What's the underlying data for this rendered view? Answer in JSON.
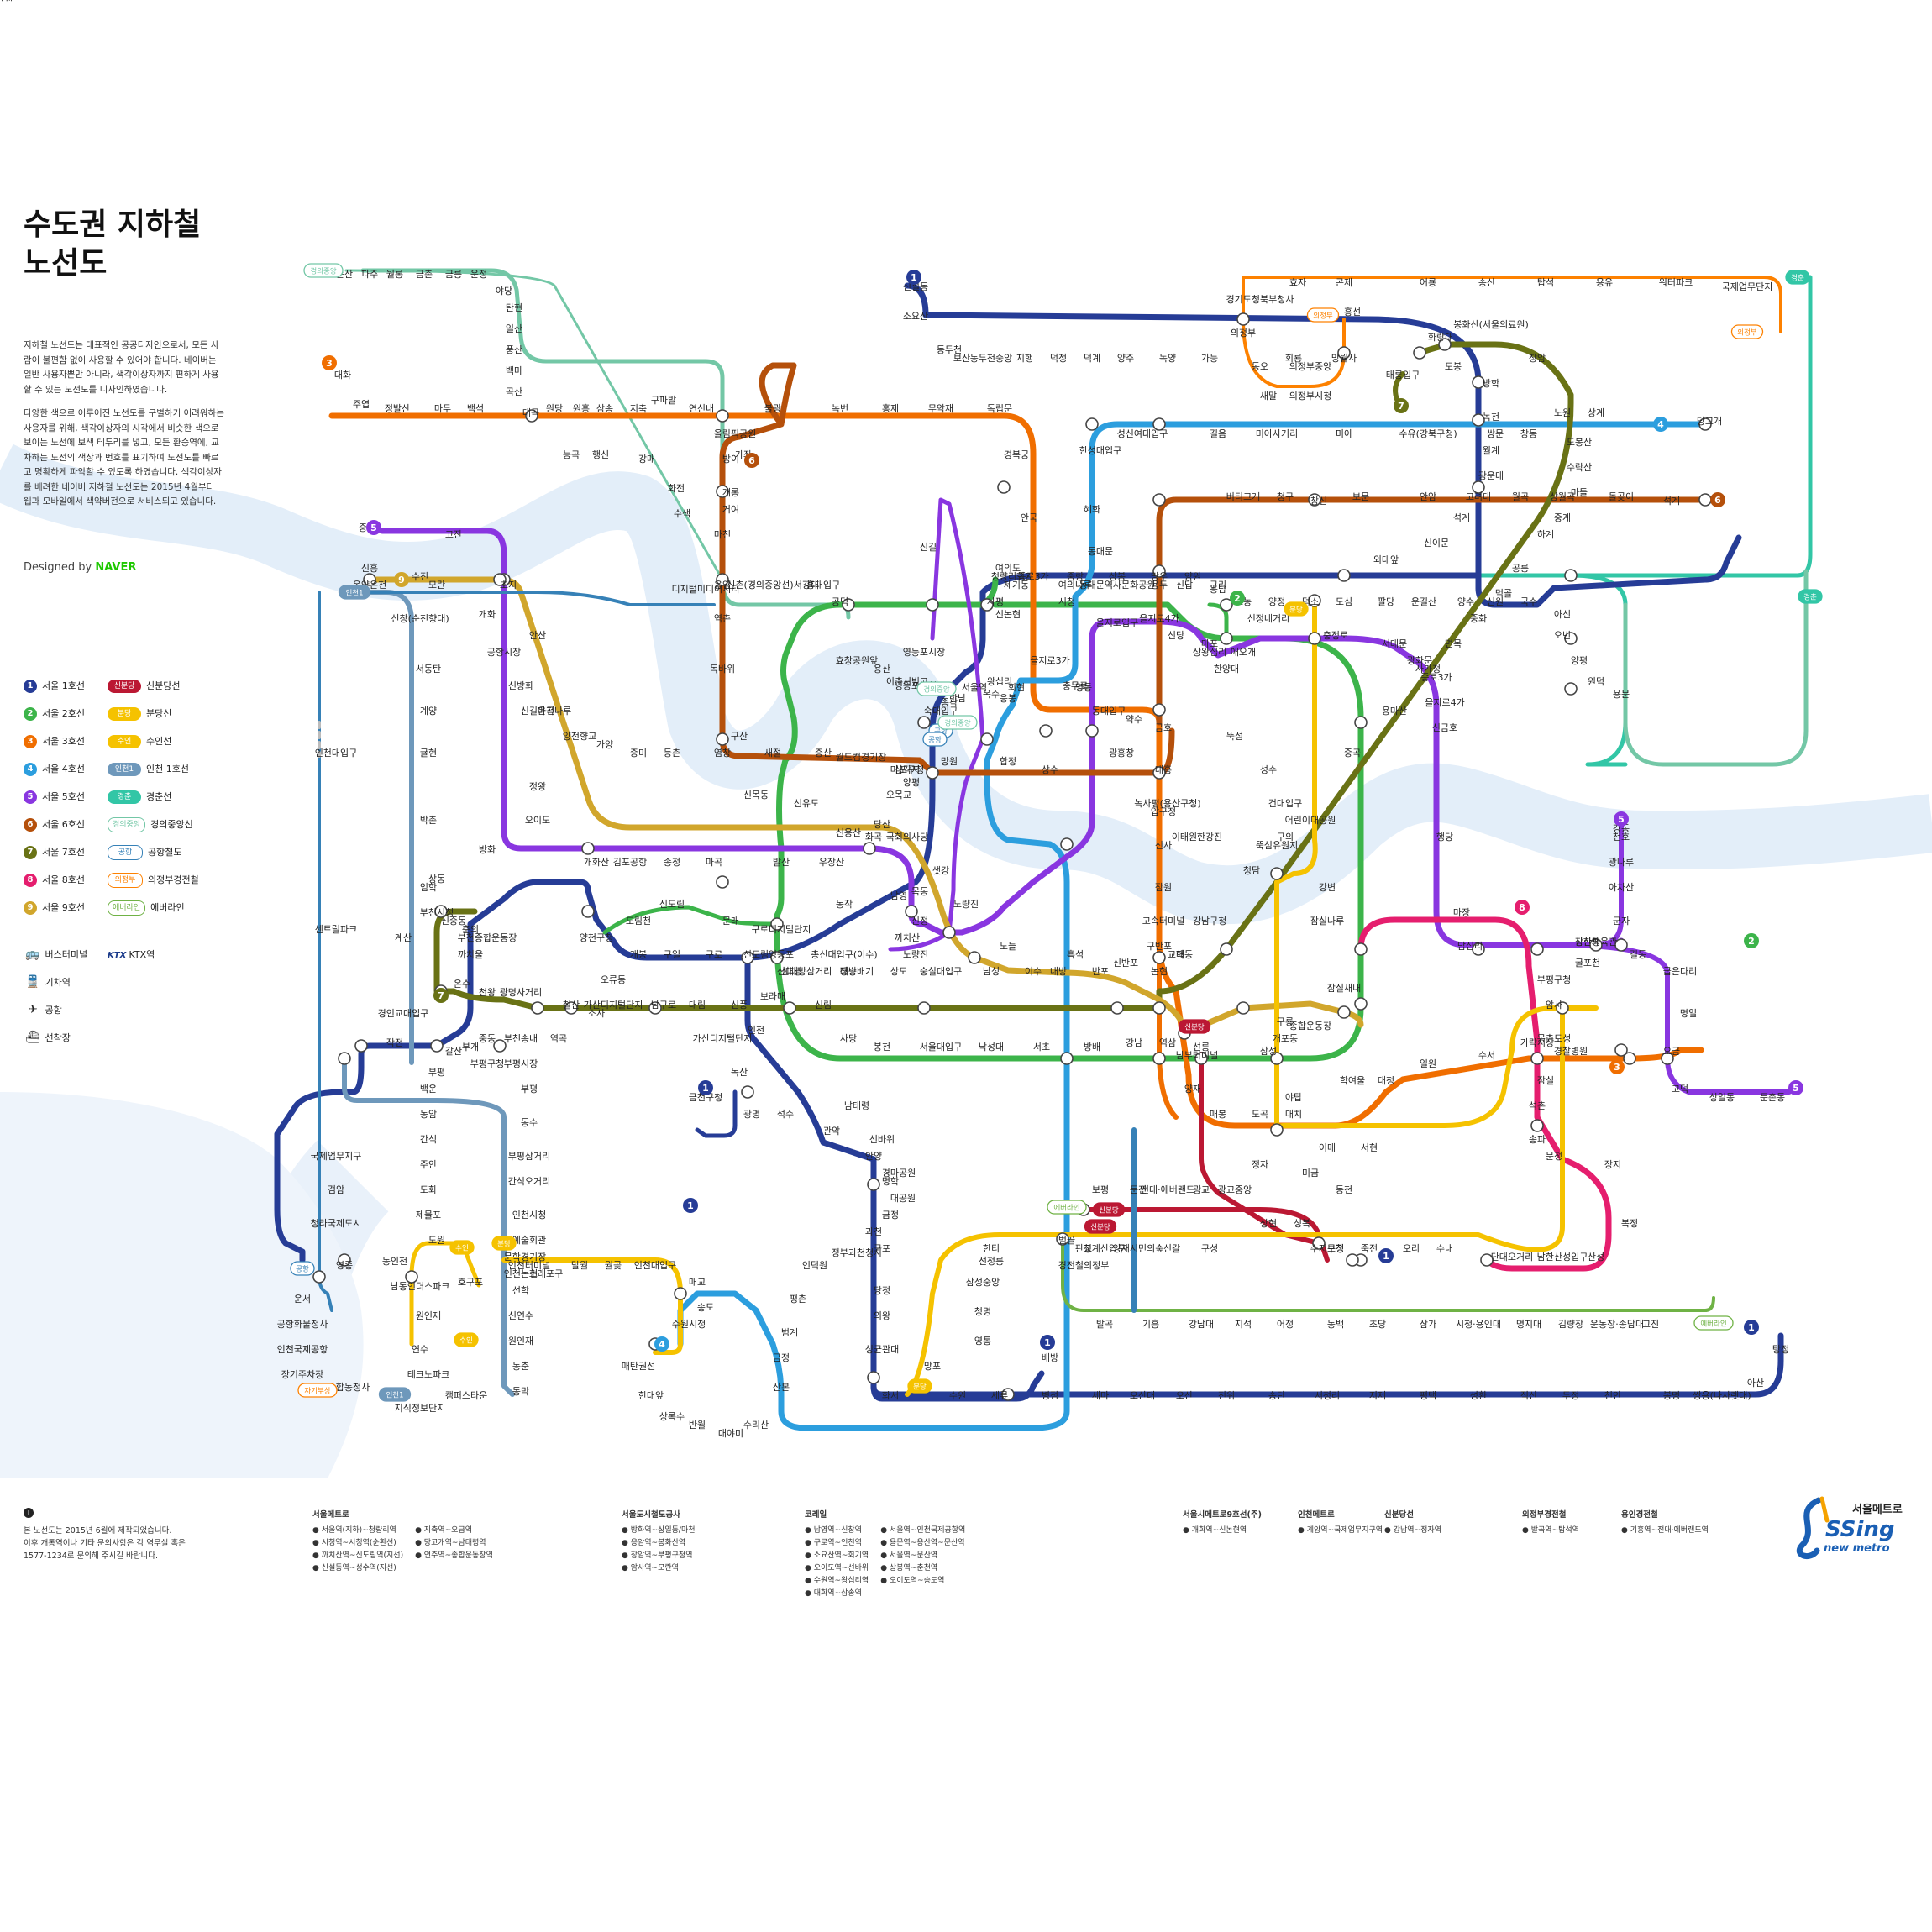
{
  "title": "수도권 지하철\n노선도",
  "intro": [
    "지하철 노선도는 대표적인 공공디자인으로서, 모든 사람이 불편함 없이 사용할 수 있어야 합니다. 네이버는 일반 사용자뿐만 아니라, 색각이상자까지 편하게 사용할 수 있는 노선도를 디자인하였습니다.",
    "다양한 색으로 이루어진 노선도를 구별하기 어려워하는 사용자를 위해, 색각이상자의 시각에서 비슷한 색으로 보이는 노선에 보색 테두리를 넣고, 모든 환승역에, 교차하는 노선의 색상과 번호를 표기하여 노선도를 빠르고 명확하게 파악할 수 있도록 하였습니다. 색각이상자를 배려한 네이버 지하철 노선도는 2015년 4월부터 웹과 모바일에서 색약버전으로 서비스되고 있습니다."
  ],
  "designed_by": "Designed by",
  "designed_brand": "NAVER",
  "legend_lines": [
    {
      "badge": "1",
      "label": "서울 1호선",
      "color": "#263c96"
    },
    {
      "badge": "2",
      "label": "서울 2호선",
      "color": "#3cb44a"
    },
    {
      "badge": "3",
      "label": "서울 3호선",
      "color": "#f06e00"
    },
    {
      "badge": "4",
      "label": "서울 4호선",
      "color": "#2c9ede"
    },
    {
      "badge": "5",
      "label": "서울 5호선",
      "color": "#8936e0"
    },
    {
      "badge": "6",
      "label": "서울 6호선",
      "color": "#b5500b"
    },
    {
      "badge": "7",
      "label": "서울 7호선",
      "color": "#697215"
    },
    {
      "badge": "8",
      "label": "서울 8호선",
      "color": "#e51e6e"
    },
    {
      "badge": "9",
      "label": "서울 9호선",
      "color": "#d1a62c"
    }
  ],
  "legend_other": [
    {
      "badge": "신분당",
      "label": "신분당선",
      "color": "#bb1833"
    },
    {
      "badge": "분당",
      "label": "분당선",
      "color": "#f5c200"
    },
    {
      "badge": "수인",
      "label": "수인선",
      "color": "#f5c200"
    },
    {
      "badge": "인천1",
      "label": "인천 1호선",
      "color": "#6e98bb"
    },
    {
      "badge": "경춘",
      "label": "경춘선",
      "color": "#32c6a6"
    },
    {
      "badge": "경의중앙",
      "label": "경의중앙선",
      "color": "#73c7a6"
    },
    {
      "badge": "공항",
      "label": "공항철도",
      "color": "#3681b7"
    },
    {
      "badge": "의정부",
      "label": "의정부경전철",
      "color": "#fd8100"
    },
    {
      "badge": "에버라인",
      "label": "에버라인",
      "color": "#6fb245"
    }
  ],
  "legend_symbols": [
    {
      "icon": "bus-terminal-icon",
      "glyph": "🚌",
      "label": "버스터미널"
    },
    {
      "icon": "ktx-icon",
      "glyph": "KTX",
      "label": "KTX역"
    },
    {
      "icon": "train-station-icon",
      "glyph": "🚆",
      "label": "기차역"
    },
    {
      "icon": "airport-icon",
      "glyph": "✈",
      "label": "공항"
    },
    {
      "icon": "ferry-icon",
      "glyph": "⛴",
      "label": "선착장"
    }
  ],
  "footer_note": "본 노선도는 2015년 6월에 제작되었습니다.\n이후 개통역이나 기타 문의사항은 각 역무실 혹은\n1577-1234로 문의해 주시길 바랍니다.",
  "footer_sections": [
    {
      "heading": "서울메트로",
      "items": [
        "서울역(지하)~청량리역",
        "시청역~시청역(순환선)",
        "까치산역~신도림역(지선)",
        "신설동역~성수역(지선)",
        "지축역~오금역",
        "당고개역~남태령역",
        "연주역~종합운동장역"
      ]
    },
    {
      "heading": "서울도시철도공사",
      "items": [
        "방화역~상일동/마천",
        "응암역~봉화산역",
        "장암역~부평구청역",
        "암사역~모란역"
      ]
    },
    {
      "heading": "코레일",
      "items": [
        "남영역~신창역",
        "구로역~인천역",
        "소요산역~회기역",
        "오이도역~선바위",
        "수원역~왕십리역",
        "대화역~삼송역",
        "서울역~인천국제공항역",
        "용문역~용산역~문산역",
        "서울역~문산역",
        "상봉역~춘천역",
        "오이도역~송도역"
      ]
    },
    {
      "heading": "서울시메트로9호선(주)",
      "items": [
        "개화역~신논현역"
      ]
    },
    {
      "heading": "인천메트로",
      "items": [
        "계양역~국제업무지구역"
      ]
    },
    {
      "heading": "신분당선",
      "items": [
        "강남역~정자역"
      ]
    },
    {
      "heading": "의정부경전철",
      "items": [
        "발곡역~탑석역"
      ]
    },
    {
      "heading": "용인경전철",
      "items": [
        "기흥역~전대·에버랜드역"
      ]
    }
  ],
  "logo": {
    "org": "서울메트로",
    "brand": "SSing",
    "sub": "new metro"
  },
  "map": {
    "line_colors": {
      "l1": "#263c96",
      "l2": "#3cb44a",
      "l3": "#f06e00",
      "l4": "#2c9ede",
      "l5": "#8936e0",
      "l6": "#b5500b",
      "l7": "#697215",
      "l8": "#e51e6e",
      "l9": "#d1a62c",
      "sbd": "#bb1833",
      "bd": "#f5c200",
      "inc1": "#6e98bb",
      "gc": "#32c6a6",
      "gj": "#73c7a6",
      "arex": "#3681b7",
      "uj": "#fd8100",
      "ever": "#6fb245"
    },
    "line_badges": [
      {
        "num": "1",
        "color": "#263c96"
      },
      {
        "num": "1",
        "color": "#263c96"
      },
      {
        "num": "1",
        "color": "#263c96"
      },
      {
        "num": "1",
        "color": "#263c96"
      },
      {
        "num": "1",
        "color": "#263c96"
      },
      {
        "num": "1",
        "color": "#263c96"
      },
      {
        "num": "2",
        "color": "#3cb44a"
      },
      {
        "num": "2",
        "color": "#3cb44a"
      },
      {
        "num": "3",
        "color": "#f06e00"
      },
      {
        "num": "3",
        "color": "#f06e00"
      },
      {
        "num": "4",
        "color": "#2c9ede"
      },
      {
        "num": "4",
        "color": "#2c9ede"
      },
      {
        "num": "5",
        "color": "#8936e0"
      },
      {
        "num": "5",
        "color": "#8936e0"
      },
      {
        "num": "5",
        "color": "#8936e0"
      },
      {
        "num": "6",
        "color": "#b5500b"
      },
      {
        "num": "6",
        "color": "#b5500b"
      },
      {
        "num": "7",
        "color": "#697215"
      },
      {
        "num": "7",
        "color": "#697215"
      },
      {
        "num": "8",
        "color": "#e51e6e"
      },
      {
        "num": "9",
        "color": "#d1a62c"
      }
    ],
    "line_tags": [
      "경의중앙",
      "경의중앙",
      "경춘",
      "경춘",
      "의정부",
      "의정부",
      "분당",
      "분당",
      "분당",
      "수인",
      "수인",
      "인천1",
      "인천1",
      "공항",
      "공항",
      "자기부상",
      "에버라인",
      "에버라인",
      "신분당",
      "신분당",
      "신분당",
      "경의중앙",
      "공항"
    ],
    "stations": [
      "문산",
      "파주",
      "월롱",
      "금촌",
      "금릉",
      "운정",
      "야당",
      "탄현",
      "일산",
      "풍산",
      "백마",
      "곡산",
      "대곡",
      "능곡",
      "행신",
      "강매",
      "화전",
      "수색",
      "디지털미디어시티",
      "가좌",
      "신촌(경의중앙선)",
      "서강대",
      "홍대입구",
      "공덕",
      "효창공원앞",
      "용산",
      "이촌",
      "서빙고",
      "한남",
      "옥수",
      "응봉",
      "왕십리",
      "청량리",
      "회기",
      "중랑",
      "상봉",
      "망우",
      "양원",
      "구리",
      "도농",
      "양정",
      "덕소",
      "도심",
      "팔당",
      "운길산",
      "양수",
      "신원",
      "국수",
      "아신",
      "오빈",
      "양평",
      "원덕",
      "용문",
      "대화",
      "주엽",
      "정발산",
      "마두",
      "백석",
      "원당",
      "원흥",
      "삼송",
      "지축",
      "구파발",
      "연신내",
      "불광",
      "녹번",
      "홍제",
      "무악재",
      "독립문",
      "경복궁",
      "안국",
      "종로3가",
      "을지로3가",
      "충무로",
      "동대입구",
      "약수",
      "금호",
      "압구정",
      "신사",
      "잠원",
      "고속터미널",
      "교대",
      "남부터미널",
      "양재",
      "매봉",
      "도곡",
      "대치",
      "학여울",
      "대청",
      "일원",
      "수서",
      "가락시장",
      "경찰병원",
      "오금",
      "당고개",
      "상계",
      "노원",
      "창동",
      "쌍문",
      "수유(강북구청)",
      "미아",
      "미아사거리",
      "길음",
      "성신여대입구",
      "한성대입구",
      "혜화",
      "동대문",
      "동대문역사문화공원",
      "명동",
      "회현",
      "서울역",
      "숙대입구",
      "삼각지",
      "신용산",
      "동작",
      "총신대입구(이수)",
      "사당",
      "남태령",
      "선바위",
      "경마공원",
      "대공원",
      "과천",
      "정부과천청사",
      "인덕원",
      "평촌",
      "범계",
      "금정",
      "산본",
      "수리산",
      "대야미",
      "반월",
      "상록수",
      "한대앞",
      "중앙",
      "고잔",
      "초지",
      "안산",
      "신길온천",
      "정왕",
      "오이도",
      "방화",
      "개화산",
      "김포공항",
      "송정",
      "마곡",
      "발산",
      "우장산",
      "화곡",
      "까치산",
      "신정",
      "목동",
      "오목교",
      "양평",
      "영등포구청",
      "영등포시장",
      "신길",
      "여의도",
      "여의나루",
      "마포",
      "애오개",
      "충정로",
      "서대문",
      "광화문",
      "종로3가",
      "을지로4가",
      "신금호",
      "행당",
      "마장",
      "답십리",
      "장한평",
      "군자",
      "아차산",
      "광나루",
      "천호",
      "강동",
      "길동",
      "굽은다리",
      "명일",
      "고덕",
      "상일동",
      "둔촌동",
      "올림픽공원",
      "방이",
      "개롱",
      "거여",
      "마천",
      "응암",
      "역촌",
      "독바위",
      "구산",
      "새절",
      "증산",
      "월드컵경기장",
      "마포구청",
      "망원",
      "합정",
      "상수",
      "광흥창",
      "대흥",
      "녹사평(용산구청)",
      "이태원",
      "한강진",
      "버티고개",
      "청구",
      "창신",
      "보문",
      "안암",
      "고려대",
      "월곡",
      "상월곡",
      "돌곶이",
      "석계",
      "태릉입구",
      "화랑대",
      "봉화산(서울의료원)",
      "장암",
      "도봉산",
      "수락산",
      "마들",
      "중계",
      "하계",
      "공릉",
      "먹골",
      "중화",
      "면목",
      "사가정",
      "용마산",
      "중곡",
      "어린이대공원",
      "뚝섬유원지",
      "청담",
      "강남구청",
      "학동",
      "논현",
      "반포",
      "내방",
      "이수",
      "남성",
      "숭실대입구",
      "상도",
      "장승배기",
      "신대방삼거리",
      "보라매",
      "신풍",
      "대림",
      "남구로",
      "가산디지털단지",
      "철산",
      "광명사거리",
      "천왕",
      "온수",
      "까치울",
      "부천종합운동장",
      "춘의",
      "신중동",
      "부천시청",
      "상동",
      "삼산체육관",
      "굴포천",
      "부평구청",
      "암사",
      "몽촌토성",
      "잠실",
      "석촌",
      "송파",
      "문정",
      "장지",
      "복정",
      "산성",
      "남한산성입구",
      "단대오거리",
      "신흥",
      "수진",
      "모란",
      "개화",
      "공항시장",
      "신방화",
      "마곡나루",
      "양천향교",
      "가양",
      "증미",
      "등촌",
      "염창",
      "신목동",
      "선유도",
      "당산",
      "국회의사당",
      "샛강",
      "노량진",
      "노들",
      "흑석",
      "구반포",
      "신반포",
      "사평",
      "신논현",
      "시청",
      "을지로입구",
      "을지로4가",
      "신당",
      "상왕십리",
      "한양대",
      "뚝섬",
      "성수",
      "건대입구",
      "구의",
      "강변",
      "잠실나루",
      "잠실새내",
      "종합운동장",
      "삼성",
      "선릉",
      "역삼",
      "강남",
      "방배",
      "서초",
      "낙성대",
      "서울대입구",
      "봉천",
      "신림",
      "신대방",
      "구로디지털단지",
      "문래",
      "신도림",
      "도림천",
      "양천구청",
      "신정네거리",
      "용답",
      "신답",
      "용두",
      "신설동",
      "소요산",
      "동두천",
      "보산",
      "동두천중앙",
      "지행",
      "덕정",
      "덕계",
      "양주",
      "녹양",
      "가능",
      "의정부",
      "회룡",
      "망월사",
      "도봉",
      "방학",
      "녹천",
      "월계",
      "광운대",
      "석계",
      "신이문",
      "외대앞",
      "제기동",
      "종각",
      "남영",
      "노량진",
      "대방",
      "영등포",
      "신도림",
      "구로",
      "구일",
      "개봉",
      "오류동",
      "소사",
      "역곡",
      "송내",
      "부천",
      "중동",
      "부개",
      "부평",
      "백운",
      "동암",
      "간석",
      "주안",
      "도화",
      "제물포",
      "도원",
      "동인천",
      "인천",
      "가산디지털단지",
      "독산",
      "금천구청",
      "광명",
      "석수",
      "관악",
      "안양",
      "명학",
      "금정",
      "군포",
      "당정",
      "의왕",
      "성균관대",
      "화서",
      "수원",
      "세류",
      "병점",
      "세마",
      "오산대",
      "오산",
      "진위",
      "송탄",
      "서정리",
      "지제",
      "평택",
      "성환",
      "직산",
      "두정",
      "천안",
      "봉명",
      "쌍용(나사렛대)",
      "아산",
      "탕정",
      "배방",
      "온양온천",
      "신창(순천향대)",
      "서동탄",
      "계양",
      "귤현",
      "박촌",
      "임학",
      "계산",
      "경인교대입구",
      "작전",
      "갈산",
      "부평구청",
      "부평시장",
      "부평",
      "동수",
      "부평삼거리",
      "간석오거리",
      "인천시청",
      "예술회관",
      "인천터미널",
      "문학경기장",
      "선학",
      "신연수",
      "원인재",
      "동춘",
      "동막",
      "캠퍼스타운",
      "테크노파크",
      "지식정보단지",
      "인천대입구",
      "센트럴파크",
      "국제업무지구",
      "검암",
      "청라국제도시",
      "영종",
      "운서",
      "공항화물청사",
      "인천국제공항",
      "장기주차장",
      "합동청사",
      "국제업무단지",
      "워터파크",
      "용유",
      "탑석",
      "송산",
      "어룡",
      "곤제",
      "효자",
      "경기도청북부청사",
      "새말",
      "동오",
      "의정부중앙",
      "의정부시청",
      "흥선",
      "범골",
      "경전철의정부",
      "발곡",
      "기흥",
      "강남대",
      "지석",
      "어정",
      "동백",
      "초당",
      "삼가",
      "시청·용인대",
      "명지대",
      "김량장",
      "운동장·송담대",
      "고진",
      "보평",
      "둔전",
      "전대·에버랜드",
      "광교",
      "광교중앙",
      "상현",
      "성복",
      "수지구청",
      "동천",
      "미금",
      "정자",
      "판교",
      "청계산입구",
      "양재시민의숲",
      "신갈",
      "구성",
      "보정",
      "죽전",
      "오리",
      "수내",
      "서현",
      "이매",
      "야탑",
      "개포동",
      "구룡",
      "한티",
      "선정릉",
      "삼성중앙",
      "청명",
      "영통",
      "망포",
      "매탄권선",
      "수원시청",
      "매교",
      "송도",
      "인천대입구",
      "월곶",
      "달월",
      "소래포구",
      "인천논현",
      "호구포",
      "남동인더스파크",
      "원인재",
      "연수",
      "신포",
      "숭의",
      "인하대"
    ]
  }
}
